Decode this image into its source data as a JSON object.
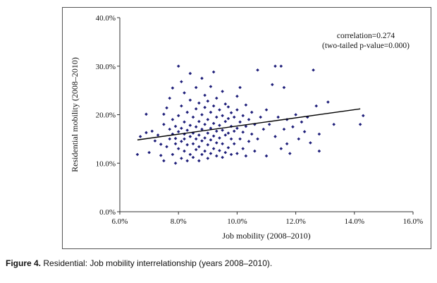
{
  "caption": {
    "label": "Figure 4.",
    "text": "Residential: Job mobility interrelationship (years 2008–2010)."
  },
  "chart_data": {
    "type": "scatter",
    "xlabel": "Job mobility (2008–2010)",
    "ylabel": "Residential mobility (2008–2010)",
    "xlim": [
      0.06,
      0.16
    ],
    "ylim": [
      0.0,
      0.4
    ],
    "x_ticks": [
      "6.0%",
      "8.0%",
      "10.0%",
      "12.0%",
      "14.0%",
      "16.0%"
    ],
    "y_ticks": [
      "0.0%",
      "10.0%",
      "20.0%",
      "30.0%",
      "40.0%"
    ],
    "grid": false,
    "marker_color": "#1f1f7a",
    "line_color": "#000000",
    "annotation": [
      "correlation=0.274",
      "(two-tailed p-value=0.000)"
    ],
    "trendline": {
      "x": [
        0.066,
        0.142
      ],
      "y": [
        0.148,
        0.212
      ]
    },
    "series": [
      {
        "points": [
          [
            0.066,
            0.118
          ],
          [
            0.067,
            0.155
          ],
          [
            0.069,
            0.163
          ],
          [
            0.069,
            0.201
          ],
          [
            0.07,
            0.122
          ],
          [
            0.071,
            0.166
          ],
          [
            0.072,
            0.146
          ],
          [
            0.073,
            0.158
          ],
          [
            0.074,
            0.139
          ],
          [
            0.074,
            0.116
          ],
          [
            0.075,
            0.105
          ],
          [
            0.075,
            0.18
          ],
          [
            0.075,
            0.201
          ],
          [
            0.076,
            0.214
          ],
          [
            0.076,
            0.134
          ],
          [
            0.077,
            0.15
          ],
          [
            0.077,
            0.17
          ],
          [
            0.077,
            0.234
          ],
          [
            0.078,
            0.118
          ],
          [
            0.078,
            0.16
          ],
          [
            0.078,
            0.19
          ],
          [
            0.078,
            0.255
          ],
          [
            0.079,
            0.1
          ],
          [
            0.079,
            0.14
          ],
          [
            0.079,
            0.151
          ],
          [
            0.079,
            0.176
          ],
          [
            0.08,
            0.13
          ],
          [
            0.08,
            0.165
          ],
          [
            0.08,
            0.198
          ],
          [
            0.08,
            0.3
          ],
          [
            0.081,
            0.11
          ],
          [
            0.081,
            0.145
          ],
          [
            0.081,
            0.172
          ],
          [
            0.081,
            0.218
          ],
          [
            0.081,
            0.268
          ],
          [
            0.082,
            0.125
          ],
          [
            0.082,
            0.15
          ],
          [
            0.082,
            0.16
          ],
          [
            0.082,
            0.185
          ],
          [
            0.082,
            0.245
          ],
          [
            0.083,
            0.105
          ],
          [
            0.083,
            0.138
          ],
          [
            0.083,
            0.168
          ],
          [
            0.083,
            0.205
          ],
          [
            0.084,
            0.118
          ],
          [
            0.084,
            0.155
          ],
          [
            0.084,
            0.178
          ],
          [
            0.084,
            0.23
          ],
          [
            0.084,
            0.285
          ],
          [
            0.085,
            0.112
          ],
          [
            0.085,
            0.14
          ],
          [
            0.085,
            0.162
          ],
          [
            0.085,
            0.195
          ],
          [
            0.086,
            0.128
          ],
          [
            0.086,
            0.15
          ],
          [
            0.086,
            0.175
          ],
          [
            0.086,
            0.212
          ],
          [
            0.086,
            0.256
          ],
          [
            0.087,
            0.105
          ],
          [
            0.087,
            0.134
          ],
          [
            0.087,
            0.158
          ],
          [
            0.087,
            0.186
          ],
          [
            0.087,
            0.224
          ],
          [
            0.088,
            0.118
          ],
          [
            0.088,
            0.146
          ],
          [
            0.088,
            0.17
          ],
          [
            0.088,
            0.2
          ],
          [
            0.088,
            0.275
          ],
          [
            0.089,
            0.125
          ],
          [
            0.089,
            0.152
          ],
          [
            0.089,
            0.18
          ],
          [
            0.089,
            0.215
          ],
          [
            0.089,
            0.24
          ],
          [
            0.09,
            0.11
          ],
          [
            0.09,
            0.138
          ],
          [
            0.09,
            0.162
          ],
          [
            0.09,
            0.19
          ],
          [
            0.09,
            0.228
          ],
          [
            0.091,
            0.12
          ],
          [
            0.091,
            0.148
          ],
          [
            0.091,
            0.172
          ],
          [
            0.091,
            0.205
          ],
          [
            0.091,
            0.258
          ],
          [
            0.092,
            0.13
          ],
          [
            0.092,
            0.156
          ],
          [
            0.092,
            0.182
          ],
          [
            0.092,
            0.218
          ],
          [
            0.092,
            0.288
          ],
          [
            0.093,
            0.115
          ],
          [
            0.093,
            0.142
          ],
          [
            0.093,
            0.166
          ],
          [
            0.093,
            0.195
          ],
          [
            0.093,
            0.234
          ],
          [
            0.094,
            0.126
          ],
          [
            0.094,
            0.152
          ],
          [
            0.094,
            0.178
          ],
          [
            0.094,
            0.21
          ],
          [
            0.095,
            0.112
          ],
          [
            0.095,
            0.14
          ],
          [
            0.095,
            0.168
          ],
          [
            0.095,
            0.198
          ],
          [
            0.095,
            0.248
          ],
          [
            0.096,
            0.122
          ],
          [
            0.096,
            0.158
          ],
          [
            0.096,
            0.186
          ],
          [
            0.096,
            0.222
          ],
          [
            0.097,
            0.132
          ],
          [
            0.097,
            0.162
          ],
          [
            0.097,
            0.192
          ],
          [
            0.097,
            0.216
          ],
          [
            0.098,
            0.118
          ],
          [
            0.098,
            0.15
          ],
          [
            0.098,
            0.176
          ],
          [
            0.098,
            0.204
          ],
          [
            0.099,
            0.14
          ],
          [
            0.099,
            0.166
          ],
          [
            0.099,
            0.195
          ],
          [
            0.1,
            0.12
          ],
          [
            0.1,
            0.172
          ],
          [
            0.1,
            0.21
          ],
          [
            0.1,
            0.238
          ],
          [
            0.101,
            0.15
          ],
          [
            0.101,
            0.185
          ],
          [
            0.101,
            0.256
          ],
          [
            0.102,
            0.13
          ],
          [
            0.102,
            0.164
          ],
          [
            0.102,
            0.198
          ],
          [
            0.103,
            0.115
          ],
          [
            0.103,
            0.176
          ],
          [
            0.103,
            0.22
          ],
          [
            0.104,
            0.145
          ],
          [
            0.104,
            0.19
          ],
          [
            0.105,
            0.16
          ],
          [
            0.105,
            0.205
          ],
          [
            0.106,
            0.125
          ],
          [
            0.106,
            0.18
          ],
          [
            0.107,
            0.15
          ],
          [
            0.107,
            0.292
          ],
          [
            0.108,
            0.195
          ],
          [
            0.109,
            0.17
          ],
          [
            0.11,
            0.115
          ],
          [
            0.11,
            0.21
          ],
          [
            0.111,
            0.18
          ],
          [
            0.112,
            0.262
          ],
          [
            0.113,
            0.155
          ],
          [
            0.113,
            0.3
          ],
          [
            0.114,
            0.195
          ],
          [
            0.115,
            0.13
          ],
          [
            0.115,
            0.3
          ],
          [
            0.116,
            0.17
          ],
          [
            0.116,
            0.256
          ],
          [
            0.117,
            0.14
          ],
          [
            0.117,
            0.19
          ],
          [
            0.118,
            0.12
          ],
          [
            0.119,
            0.175
          ],
          [
            0.12,
            0.2
          ],
          [
            0.121,
            0.15
          ],
          [
            0.122,
            0.185
          ],
          [
            0.123,
            0.165
          ],
          [
            0.124,
            0.195
          ],
          [
            0.125,
            0.142
          ],
          [
            0.126,
            0.292
          ],
          [
            0.127,
            0.218
          ],
          [
            0.128,
            0.125
          ],
          [
            0.128,
            0.16
          ],
          [
            0.131,
            0.226
          ],
          [
            0.133,
            0.18
          ],
          [
            0.142,
            0.18
          ],
          [
            0.143,
            0.198
          ]
        ]
      }
    ]
  }
}
